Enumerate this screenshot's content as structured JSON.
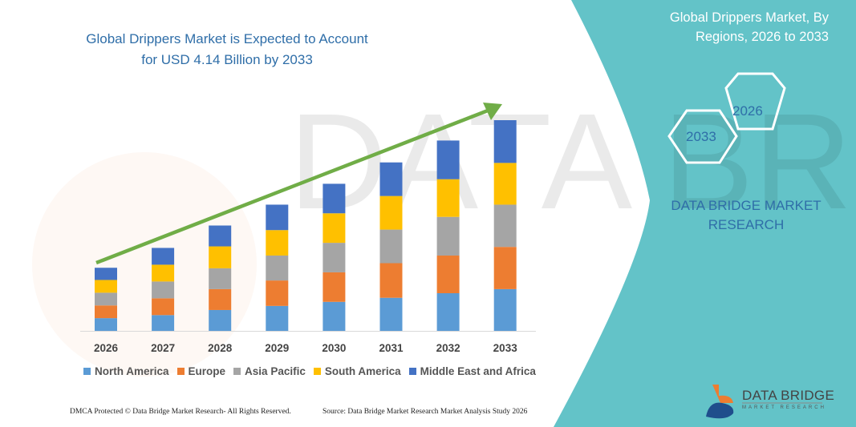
{
  "header": {
    "title": "Global Drippers Market is Expected to Account for USD 4.14 Billion by 2033"
  },
  "side_panel": {
    "title": "Global Drippers Market, By Regions, 2026 to 2033",
    "hex_start_year": "2026",
    "hex_end_year": "2033",
    "brand_text": "DATA BRIDGE MARKET RESEARCH",
    "logo_text": "DATA BRIDGE",
    "logo_subtext": "MARKET RESEARCH",
    "background_color": "#63c3c8"
  },
  "footer": {
    "copyright": "DMCA Protected © Data Bridge Market Research- All Rights Reserved.",
    "source": "Source: Data Bridge Market Research Market Analysis Study 2026"
  },
  "chart_data": {
    "type": "bar",
    "stacked": true,
    "title": "Global Drippers Market is Expected to Account for USD 4.14 Billion by 2033",
    "xlabel": "",
    "ylabel": "",
    "unit": "USD Billion (approximate, estimated from bar heights)",
    "categories": [
      "2026",
      "2027",
      "2028",
      "2029",
      "2030",
      "2031",
      "2032",
      "2033"
    ],
    "series": [
      {
        "name": "North America",
        "color": "#5b9bd5",
        "values": [
          0.25,
          0.31,
          0.41,
          0.49,
          0.57,
          0.65,
          0.74,
          0.82
        ]
      },
      {
        "name": "Europe",
        "color": "#ed7d31",
        "values": [
          0.25,
          0.33,
          0.41,
          0.5,
          0.58,
          0.68,
          0.74,
          0.83
        ]
      },
      {
        "name": "Asia Pacific",
        "color": "#a5a5a5",
        "values": [
          0.25,
          0.33,
          0.41,
          0.49,
          0.58,
          0.66,
          0.76,
          0.83
        ]
      },
      {
        "name": "South America",
        "color": "#ffc000",
        "values": [
          0.25,
          0.33,
          0.43,
          0.5,
          0.58,
          0.66,
          0.74,
          0.82
        ]
      },
      {
        "name": "Middle East and Africa",
        "color": "#4472c4",
        "values": [
          0.24,
          0.33,
          0.41,
          0.5,
          0.58,
          0.66,
          0.76,
          0.84
        ]
      }
    ],
    "trend_arrow_color": "#70ad47",
    "legend_position": "bottom",
    "grid": false,
    "y_axis_shown": false
  }
}
